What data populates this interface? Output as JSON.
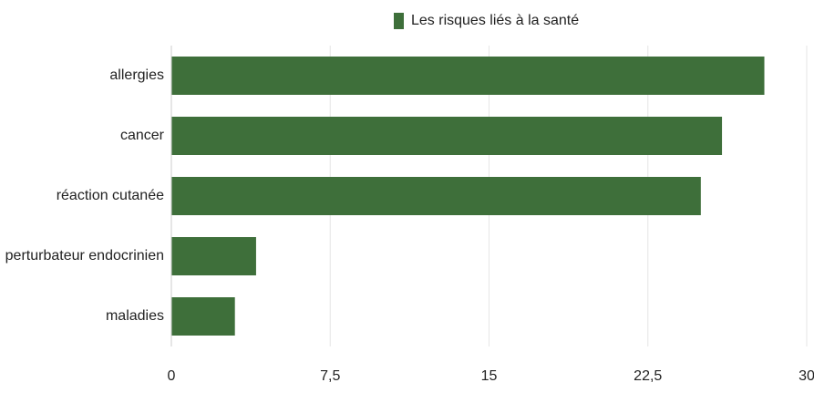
{
  "chart_data": {
    "type": "bar",
    "orientation": "horizontal",
    "categories": [
      "allergies",
      "cancer",
      "réaction cutanée",
      "perturbateur endocrinien",
      "maladies"
    ],
    "series": [
      {
        "name": "Les risques liés à la santé",
        "color": "#3e6f3a",
        "values": [
          28,
          26,
          25,
          4,
          3
        ]
      }
    ],
    "xlim": [
      0,
      30
    ],
    "xticks": [
      0,
      {
        "value": 7.5,
        "label": "7,5"
      },
      15,
      {
        "value": 22.5,
        "label": "22,5"
      },
      30
    ],
    "grid": true,
    "legend": "top"
  }
}
